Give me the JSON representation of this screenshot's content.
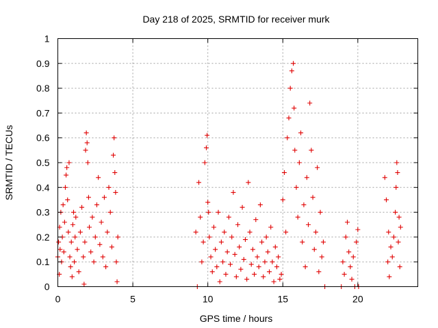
{
  "chart_data": {
    "type": "scatter",
    "title": "Day 218 of 2025, SRMTID for receiver murk",
    "xlabel": "GPS time / hours",
    "ylabel": "SRMTID / TECUs",
    "xlim": [
      0,
      24
    ],
    "ylim": [
      0,
      1
    ],
    "xticks": [
      0,
      5,
      10,
      15,
      20
    ],
    "xtick_labels": [
      "0",
      "5",
      "10",
      "15",
      "20"
    ],
    "yticks": [
      0,
      0.1,
      0.2,
      0.3,
      0.4,
      0.5,
      0.6,
      0.7,
      0.8,
      0.9,
      1
    ],
    "ytick_labels": [
      "0",
      "0.1",
      "0.2",
      "0.3",
      "0.4",
      "0.5",
      "0.6",
      "0.7",
      "0.8",
      "0.9",
      "1"
    ],
    "grid": true,
    "marker": "+",
    "color": "#e00000",
    "series": [
      {
        "points": [
          [
            0.0,
            0.12
          ],
          [
            0.05,
            0.18
          ],
          [
            0.1,
            0.05
          ],
          [
            0.12,
            0.24
          ],
          [
            0.15,
            0.15
          ],
          [
            0.2,
            0.3
          ],
          [
            0.25,
            0.1
          ],
          [
            0.3,
            0.2
          ],
          [
            0.35,
            0.33
          ],
          [
            0.4,
            0.14
          ],
          [
            0.45,
            0.26
          ],
          [
            0.5,
            0.4
          ],
          [
            0.55,
            0.45
          ],
          [
            0.6,
            0.48
          ],
          [
            0.65,
            0.35
          ],
          [
            0.7,
            0.22
          ],
          [
            0.75,
            0.5
          ],
          [
            0.8,
            0.12
          ],
          [
            0.85,
            0.08
          ],
          [
            0.9,
            0.18
          ],
          [
            0.95,
            0.04
          ],
          [
            1.0,
            0.25
          ],
          [
            1.05,
            0.3
          ],
          [
            1.1,
            0.1
          ],
          [
            1.15,
            0.2
          ],
          [
            1.2,
            0.28
          ],
          [
            1.3,
            0.15
          ],
          [
            1.4,
            0.06
          ],
          [
            1.5,
            0.22
          ],
          [
            1.6,
            0.32
          ],
          [
            1.7,
            0.12
          ],
          [
            1.75,
            0.01
          ],
          [
            1.8,
            0.18
          ],
          [
            1.85,
            0.55
          ],
          [
            1.9,
            0.62
          ],
          [
            1.95,
            0.58
          ],
          [
            2.0,
            0.5
          ],
          [
            2.05,
            0.36
          ],
          [
            2.1,
            0.24
          ],
          [
            2.2,
            0.14
          ],
          [
            2.3,
            0.28
          ],
          [
            2.4,
            0.1
          ],
          [
            2.5,
            0.2
          ],
          [
            2.6,
            0.33
          ],
          [
            2.7,
            0.44
          ],
          [
            2.8,
            0.17
          ],
          [
            2.9,
            0.26
          ],
          [
            3.0,
            0.12
          ],
          [
            3.1,
            0.36
          ],
          [
            3.2,
            0.08
          ],
          [
            3.3,
            0.22
          ],
          [
            3.4,
            0.4
          ],
          [
            3.5,
            0.3
          ],
          [
            3.6,
            0.16
          ],
          [
            3.7,
            0.53
          ],
          [
            3.75,
            0.6
          ],
          [
            3.8,
            0.46
          ],
          [
            3.85,
            0.38
          ],
          [
            3.9,
            0.1
          ],
          [
            3.95,
            0.02
          ],
          [
            4.0,
            0.2
          ],
          [
            9.2,
            0.22
          ],
          [
            9.3,
            0.0
          ],
          [
            9.4,
            0.42
          ],
          [
            9.5,
            0.28
          ],
          [
            9.6,
            0.1
          ],
          [
            9.7,
            0.18
          ],
          [
            9.8,
            0.5
          ],
          [
            9.9,
            0.56
          ],
          [
            9.95,
            0.61
          ],
          [
            10.0,
            0.34
          ],
          [
            10.05,
            0.3
          ],
          [
            10.1,
            0.2
          ],
          [
            10.2,
            0.12
          ],
          [
            10.3,
            0.06
          ],
          [
            10.4,
            0.24
          ],
          [
            10.5,
            0.15
          ],
          [
            10.6,
            0.08
          ],
          [
            10.7,
            0.3
          ],
          [
            10.8,
            0.02
          ],
          [
            10.9,
            0.18
          ],
          [
            11.0,
            0.1
          ],
          [
            11.1,
            0.22
          ],
          [
            11.2,
            0.05
          ],
          [
            11.3,
            0.14
          ],
          [
            11.4,
            0.28
          ],
          [
            11.5,
            0.09
          ],
          [
            11.6,
            0.2
          ],
          [
            11.7,
            0.38
          ],
          [
            11.8,
            0.13
          ],
          [
            11.9,
            0.04
          ],
          [
            12.0,
            0.25
          ],
          [
            12.1,
            0.16
          ],
          [
            12.2,
            0.07
          ],
          [
            12.3,
            0.32
          ],
          [
            12.4,
            0.11
          ],
          [
            12.5,
            0.19
          ],
          [
            12.6,
            0.03
          ],
          [
            12.7,
            0.42
          ],
          [
            12.8,
            0.22
          ],
          [
            12.9,
            0.09
          ],
          [
            13.0,
            0.15
          ],
          [
            13.1,
            0.05
          ],
          [
            13.2,
            0.27
          ],
          [
            13.3,
            0.12
          ],
          [
            13.4,
            0.08
          ],
          [
            13.5,
            0.33
          ],
          [
            13.6,
            0.18
          ],
          [
            13.7,
            0.04
          ],
          [
            13.8,
            0.1
          ],
          [
            13.9,
            0.2
          ],
          [
            14.0,
            0.14
          ],
          [
            14.1,
            0.06
          ],
          [
            14.2,
            0.24
          ],
          [
            14.3,
            0.1
          ],
          [
            14.4,
            0.02
          ],
          [
            14.5,
            0.16
          ],
          [
            14.6,
            0.08
          ],
          [
            14.7,
            0.12
          ],
          [
            14.8,
            0.03
          ],
          [
            14.9,
            0.05
          ],
          [
            15.0,
            0.35
          ],
          [
            15.1,
            0.46
          ],
          [
            15.2,
            0.22
          ],
          [
            15.3,
            0.6
          ],
          [
            15.4,
            0.68
          ],
          [
            15.5,
            0.8
          ],
          [
            15.6,
            0.87
          ],
          [
            15.7,
            0.9
          ],
          [
            15.75,
            0.72
          ],
          [
            15.8,
            0.55
          ],
          [
            15.9,
            0.4
          ],
          [
            16.0,
            0.28
          ],
          [
            16.1,
            0.5
          ],
          [
            16.2,
            0.62
          ],
          [
            16.3,
            0.18
          ],
          [
            16.4,
            0.33
          ],
          [
            16.5,
            0.08
          ],
          [
            16.6,
            0.44
          ],
          [
            16.7,
            0.25
          ],
          [
            16.8,
            0.74
          ],
          [
            16.9,
            0.55
          ],
          [
            17.0,
            0.36
          ],
          [
            17.1,
            0.15
          ],
          [
            17.2,
            0.22
          ],
          [
            17.3,
            0.48
          ],
          [
            17.4,
            0.06
          ],
          [
            17.5,
            0.3
          ],
          [
            17.6,
            0.12
          ],
          [
            17.7,
            0.18
          ],
          [
            17.8,
            0.0
          ],
          [
            18.9,
            0.0
          ],
          [
            19.0,
            0.1
          ],
          [
            19.1,
            0.05
          ],
          [
            19.2,
            0.2
          ],
          [
            19.3,
            0.26
          ],
          [
            19.4,
            0.14
          ],
          [
            19.5,
            0.08
          ],
          [
            19.6,
            0.03
          ],
          [
            19.7,
            0.12
          ],
          [
            19.8,
            0.0
          ],
          [
            19.9,
            0.18
          ],
          [
            20.0,
            0.23
          ],
          [
            20.05,
            0.0
          ],
          [
            21.8,
            0.44
          ],
          [
            21.9,
            0.35
          ],
          [
            22.0,
            0.1
          ],
          [
            22.05,
            0.22
          ],
          [
            22.1,
            0.04
          ],
          [
            22.2,
            0.16
          ],
          [
            22.3,
            0.12
          ],
          [
            22.4,
            0.2
          ],
          [
            22.5,
            0.3
          ],
          [
            22.55,
            0.4
          ],
          [
            22.6,
            0.5
          ],
          [
            22.65,
            0.46
          ],
          [
            22.7,
            0.18
          ],
          [
            22.75,
            0.28
          ],
          [
            22.8,
            0.08
          ],
          [
            22.85,
            0.24
          ]
        ]
      }
    ]
  }
}
